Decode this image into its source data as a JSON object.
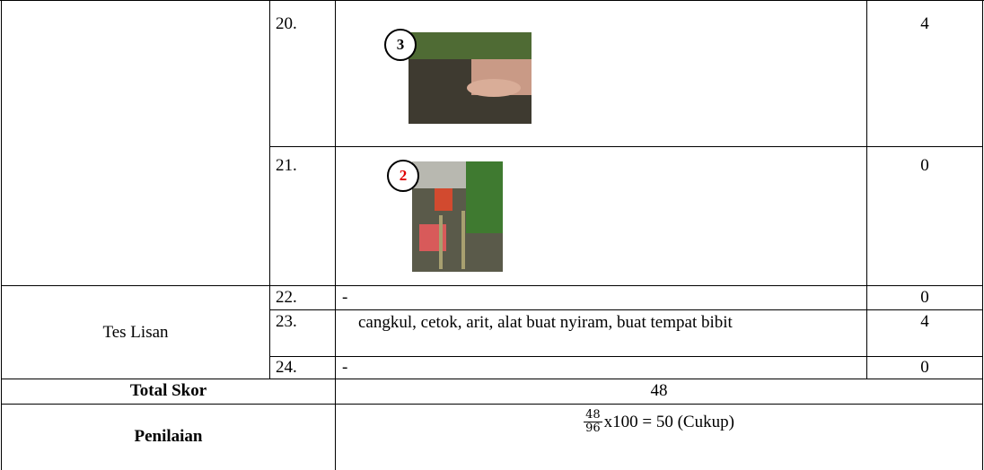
{
  "rows": [
    {
      "number": "20.",
      "image_label": "3",
      "score": "4"
    },
    {
      "number": "21.",
      "image_label": "2",
      "score": "0"
    }
  ],
  "oral_test": {
    "label": "Tes Lisan",
    "rows": [
      {
        "number": "22.",
        "answer": "-",
        "score": "0"
      },
      {
        "number": "23.",
        "answer": "cangkul, cetok, arit, alat buat nyiram, buat tempat bibit",
        "score": "4"
      },
      {
        "number": "24.",
        "answer": "-",
        "score": "0"
      }
    ]
  },
  "total": {
    "label": "Total Skor",
    "value": "48"
  },
  "assessment": {
    "label": "Penilaian",
    "numerator": "48",
    "denominator": "96",
    "formula": "x100 = 50 (Cukup)"
  }
}
